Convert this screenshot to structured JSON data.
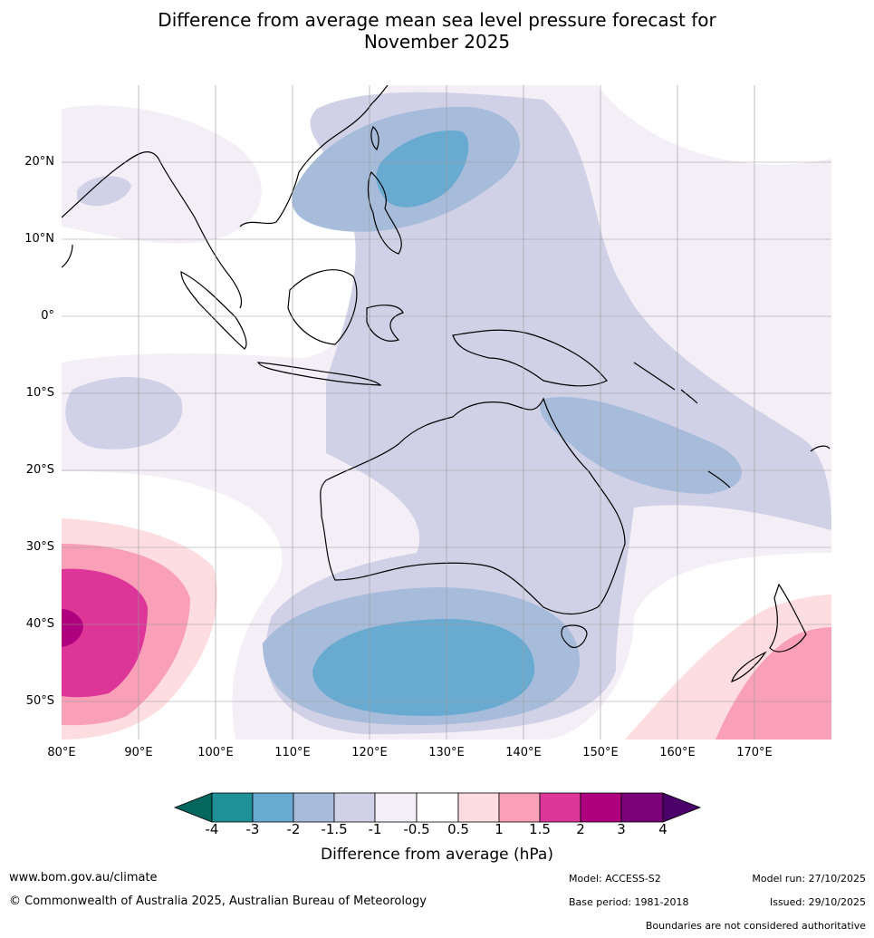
{
  "title": {
    "line1": "Difference from average mean sea level pressure forecast for",
    "line2": "November 2025"
  },
  "map": {
    "lat_labels": [
      "20°N",
      "10°N",
      "0°",
      "10°S",
      "20°S",
      "30°S",
      "40°S",
      "50°S"
    ],
    "lon_labels": [
      "80°E",
      "90°E",
      "100°E",
      "110°E",
      "120°E",
      "130°E",
      "140°E",
      "150°E",
      "160°E",
      "170°E"
    ],
    "lon_range": [
      80,
      180
    ],
    "lat_range": [
      -55,
      30
    ],
    "anomaly_regions": [
      {
        "label": "-2 to -3 hPa, south of Australia",
        "center": [
          128,
          -45
        ]
      },
      {
        "label": "-2 to -3 hPa, Philippine Sea",
        "center": [
          127,
          20
        ]
      },
      {
        "label": "+2 to +3 hPa, southern Indian Ocean",
        "center": [
          81,
          -41
        ]
      },
      {
        "label": "+1 to +1.5 hPa, east of New Zealand",
        "center": [
          177,
          -45
        ]
      }
    ]
  },
  "colorbar": {
    "ticks": [
      "-4",
      "-3",
      "-2",
      "-1.5",
      "-1",
      "-0.5",
      "0.5",
      "1",
      "1.5",
      "2",
      "3",
      "4"
    ],
    "colors": [
      "#03675e",
      "#1e9096",
      "#69aad1",
      "#a7bcdb",
      "#d0d1e6",
      "#f4eef7",
      "#ffffff",
      "#fedde0",
      "#f99fb8",
      "#dd3598",
      "#ae007e",
      "#7a0278",
      "#4a0068"
    ],
    "label": "Difference from average (hPa)"
  },
  "footer": {
    "website": "www.bom.gov.au/climate",
    "copyright": "© Commonwealth of Australia 2025, Australian Bureau of Meteorology",
    "model": "Model: ACCESS-S2",
    "base_period": "Base period: 1981-2018",
    "model_run": "Model run: 27/10/2025",
    "issued": "Issued: 29/10/2025",
    "disclaimer": "Boundaries are not considered authoritative"
  }
}
